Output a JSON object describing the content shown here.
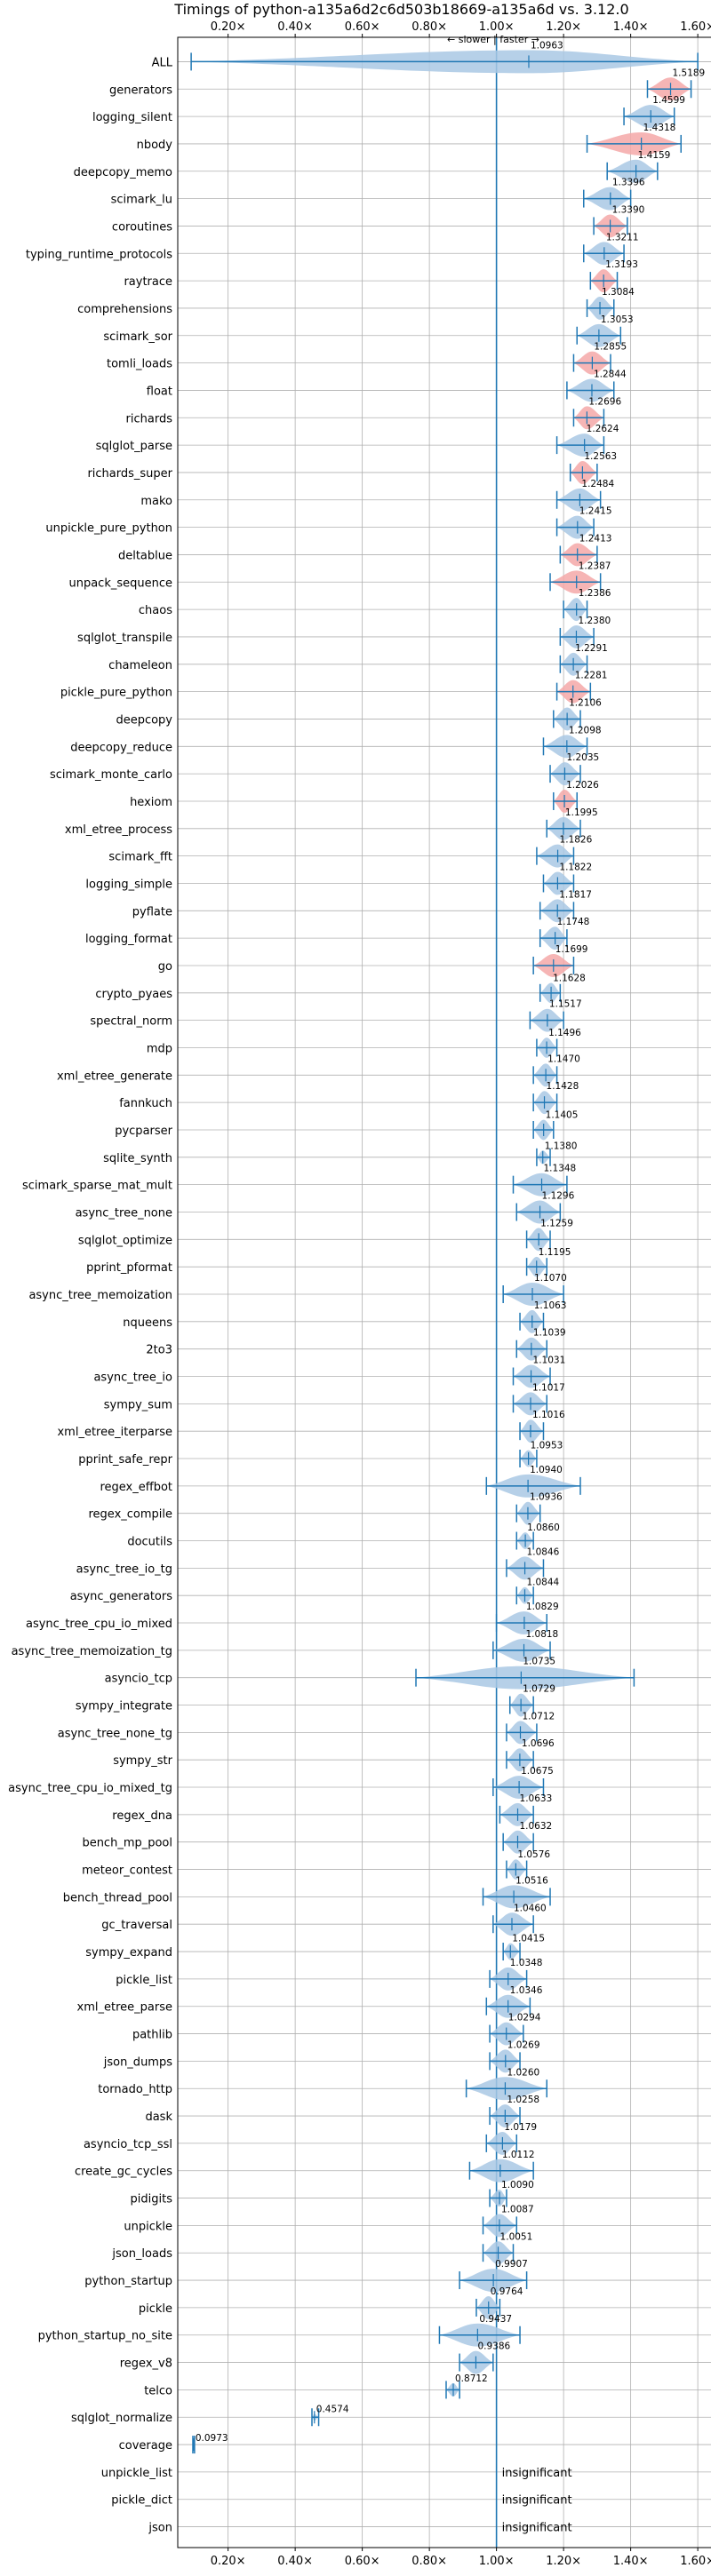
{
  "chart_data": {
    "type": "violin",
    "title": "Timings of python-a135a6d2c6d503b18669-a135a6d vs. 3.12.0",
    "direction_note": "← slower | faster →",
    "xlim": [
      0.05,
      1.65
    ],
    "xticks": [
      0.2,
      0.4,
      0.6,
      0.8,
      1.0,
      1.2,
      1.4,
      1.6
    ],
    "xtick_labels": [
      "0.20×",
      "0.40×",
      "0.60×",
      "0.80×",
      "1.00×",
      "1.20×",
      "1.40×",
      "1.60×"
    ],
    "grid": true,
    "reference_line": 1.0,
    "colors": {
      "faster": "#a9c8e4",
      "slower_highlight": "#f4a8a8",
      "line": "#1f77b4"
    },
    "rows": [
      {
        "name": "ALL",
        "value": 1.0963,
        "label": "1.0963",
        "min": 0.09,
        "max": 1.6,
        "hl": false
      },
      {
        "name": "generators",
        "value": 1.5189,
        "label": "1.5189",
        "min": 1.45,
        "max": 1.58,
        "hl": true
      },
      {
        "name": "logging_silent",
        "value": 1.4599,
        "label": "1.4599",
        "min": 1.38,
        "max": 1.53,
        "hl": false
      },
      {
        "name": "nbody",
        "value": 1.4318,
        "label": "1.4318",
        "min": 1.27,
        "max": 1.55,
        "hl": true
      },
      {
        "name": "deepcopy_memo",
        "value": 1.4159,
        "label": "1.4159",
        "min": 1.33,
        "max": 1.48,
        "hl": false
      },
      {
        "name": "scimark_lu",
        "value": 1.3396,
        "label": "1.3396",
        "min": 1.26,
        "max": 1.4,
        "hl": false
      },
      {
        "name": "coroutines",
        "value": 1.339,
        "label": "1.3390",
        "min": 1.29,
        "max": 1.39,
        "hl": true
      },
      {
        "name": "typing_runtime_protocols",
        "value": 1.3211,
        "label": "1.3211",
        "min": 1.26,
        "max": 1.38,
        "hl": false
      },
      {
        "name": "raytrace",
        "value": 1.3193,
        "label": "1.3193",
        "min": 1.28,
        "max": 1.36,
        "hl": true
      },
      {
        "name": "comprehensions",
        "value": 1.3084,
        "label": "1.3084",
        "min": 1.27,
        "max": 1.35,
        "hl": false
      },
      {
        "name": "scimark_sor",
        "value": 1.3053,
        "label": "1.3053",
        "min": 1.24,
        "max": 1.37,
        "hl": false
      },
      {
        "name": "tomli_loads",
        "value": 1.2855,
        "label": "1.2855",
        "min": 1.23,
        "max": 1.34,
        "hl": true
      },
      {
        "name": "float",
        "value": 1.2844,
        "label": "1.2844",
        "min": 1.21,
        "max": 1.35,
        "hl": false
      },
      {
        "name": "richards",
        "value": 1.2696,
        "label": "1.2696",
        "min": 1.23,
        "max": 1.32,
        "hl": true
      },
      {
        "name": "sqlglot_parse",
        "value": 1.2624,
        "label": "1.2624",
        "min": 1.18,
        "max": 1.32,
        "hl": false
      },
      {
        "name": "richards_super",
        "value": 1.2563,
        "label": "1.2563",
        "min": 1.22,
        "max": 1.3,
        "hl": true
      },
      {
        "name": "mako",
        "value": 1.2484,
        "label": "1.2484",
        "min": 1.18,
        "max": 1.31,
        "hl": false
      },
      {
        "name": "unpickle_pure_python",
        "value": 1.2415,
        "label": "1.2415",
        "min": 1.18,
        "max": 1.29,
        "hl": false
      },
      {
        "name": "deltablue",
        "value": 1.2413,
        "label": "1.2413",
        "min": 1.19,
        "max": 1.3,
        "hl": true
      },
      {
        "name": "unpack_sequence",
        "value": 1.2387,
        "label": "1.2387",
        "min": 1.16,
        "max": 1.31,
        "hl": true
      },
      {
        "name": "chaos",
        "value": 1.2386,
        "label": "1.2386",
        "min": 1.2,
        "max": 1.27,
        "hl": false
      },
      {
        "name": "sqlglot_transpile",
        "value": 1.238,
        "label": "1.2380",
        "min": 1.19,
        "max": 1.29,
        "hl": false
      },
      {
        "name": "chameleon",
        "value": 1.2291,
        "label": "1.2291",
        "min": 1.19,
        "max": 1.27,
        "hl": false
      },
      {
        "name": "pickle_pure_python",
        "value": 1.2281,
        "label": "1.2281",
        "min": 1.18,
        "max": 1.28,
        "hl": true
      },
      {
        "name": "deepcopy",
        "value": 1.2106,
        "label": "1.2106",
        "min": 1.17,
        "max": 1.25,
        "hl": false
      },
      {
        "name": "deepcopy_reduce",
        "value": 1.2098,
        "label": "1.2098",
        "min": 1.14,
        "max": 1.27,
        "hl": false
      },
      {
        "name": "scimark_monte_carlo",
        "value": 1.2035,
        "label": "1.2035",
        "min": 1.16,
        "max": 1.25,
        "hl": false
      },
      {
        "name": "hexiom",
        "value": 1.2026,
        "label": "1.2026",
        "min": 1.17,
        "max": 1.24,
        "hl": true
      },
      {
        "name": "xml_etree_process",
        "value": 1.1995,
        "label": "1.1995",
        "min": 1.15,
        "max": 1.25,
        "hl": false
      },
      {
        "name": "scimark_fft",
        "value": 1.1826,
        "label": "1.1826",
        "min": 1.12,
        "max": 1.23,
        "hl": false
      },
      {
        "name": "logging_simple",
        "value": 1.1822,
        "label": "1.1822",
        "min": 1.14,
        "max": 1.23,
        "hl": false
      },
      {
        "name": "pyflate",
        "value": 1.1817,
        "label": "1.1817",
        "min": 1.13,
        "max": 1.23,
        "hl": false
      },
      {
        "name": "logging_format",
        "value": 1.1748,
        "label": "1.1748",
        "min": 1.13,
        "max": 1.21,
        "hl": false
      },
      {
        "name": "go",
        "value": 1.1699,
        "label": "1.1699",
        "min": 1.11,
        "max": 1.23,
        "hl": true
      },
      {
        "name": "crypto_pyaes",
        "value": 1.1628,
        "label": "1.1628",
        "min": 1.13,
        "max": 1.19,
        "hl": false
      },
      {
        "name": "spectral_norm",
        "value": 1.1517,
        "label": "1.1517",
        "min": 1.1,
        "max": 1.2,
        "hl": false
      },
      {
        "name": "mdp",
        "value": 1.1496,
        "label": "1.1496",
        "min": 1.12,
        "max": 1.18,
        "hl": false
      },
      {
        "name": "xml_etree_generate",
        "value": 1.147,
        "label": "1.1470",
        "min": 1.11,
        "max": 1.18,
        "hl": false
      },
      {
        "name": "fannkuch",
        "value": 1.1428,
        "label": "1.1428",
        "min": 1.11,
        "max": 1.18,
        "hl": false
      },
      {
        "name": "pycparser",
        "value": 1.1405,
        "label": "1.1405",
        "min": 1.11,
        "max": 1.17,
        "hl": false
      },
      {
        "name": "sqlite_synth",
        "value": 1.138,
        "label": "1.1380",
        "min": 1.12,
        "max": 1.16,
        "hl": false
      },
      {
        "name": "scimark_sparse_mat_mult",
        "value": 1.1348,
        "label": "1.1348",
        "min": 1.05,
        "max": 1.21,
        "hl": false
      },
      {
        "name": "async_tree_none",
        "value": 1.1296,
        "label": "1.1296",
        "min": 1.06,
        "max": 1.19,
        "hl": false
      },
      {
        "name": "sqlglot_optimize",
        "value": 1.1259,
        "label": "1.1259",
        "min": 1.09,
        "max": 1.16,
        "hl": false
      },
      {
        "name": "pprint_pformat",
        "value": 1.1195,
        "label": "1.1195",
        "min": 1.09,
        "max": 1.15,
        "hl": false
      },
      {
        "name": "async_tree_memoization",
        "value": 1.107,
        "label": "1.1070",
        "min": 1.02,
        "max": 1.2,
        "hl": false
      },
      {
        "name": "nqueens",
        "value": 1.1063,
        "label": "1.1063",
        "min": 1.07,
        "max": 1.14,
        "hl": false
      },
      {
        "name": "2to3",
        "value": 1.1039,
        "label": "1.1039",
        "min": 1.06,
        "max": 1.15,
        "hl": false
      },
      {
        "name": "async_tree_io",
        "value": 1.1031,
        "label": "1.1031",
        "min": 1.05,
        "max": 1.16,
        "hl": false
      },
      {
        "name": "sympy_sum",
        "value": 1.1017,
        "label": "1.1017",
        "min": 1.05,
        "max": 1.15,
        "hl": false
      },
      {
        "name": "xml_etree_iterparse",
        "value": 1.1016,
        "label": "1.1016",
        "min": 1.07,
        "max": 1.14,
        "hl": false
      },
      {
        "name": "pprint_safe_repr",
        "value": 1.0953,
        "label": "1.0953",
        "min": 1.07,
        "max": 1.12,
        "hl": false
      },
      {
        "name": "regex_effbot",
        "value": 1.094,
        "label": "1.0940",
        "min": 0.97,
        "max": 1.25,
        "hl": false
      },
      {
        "name": "regex_compile",
        "value": 1.0936,
        "label": "1.0936",
        "min": 1.06,
        "max": 1.13,
        "hl": false
      },
      {
        "name": "docutils",
        "value": 1.086,
        "label": "1.0860",
        "min": 1.06,
        "max": 1.11,
        "hl": false
      },
      {
        "name": "async_tree_io_tg",
        "value": 1.0846,
        "label": "1.0846",
        "min": 1.03,
        "max": 1.14,
        "hl": false
      },
      {
        "name": "async_generators",
        "value": 1.0844,
        "label": "1.0844",
        "min": 1.06,
        "max": 1.11,
        "hl": false
      },
      {
        "name": "async_tree_cpu_io_mixed",
        "value": 1.0829,
        "label": "1.0829",
        "min": 1.0,
        "max": 1.15,
        "hl": false
      },
      {
        "name": "async_tree_memoization_tg",
        "value": 1.0818,
        "label": "1.0818",
        "min": 0.99,
        "max": 1.16,
        "hl": false
      },
      {
        "name": "asyncio_tcp",
        "value": 1.0735,
        "label": "1.0735",
        "min": 0.76,
        "max": 1.41,
        "hl": false
      },
      {
        "name": "sympy_integrate",
        "value": 1.0729,
        "label": "1.0729",
        "min": 1.04,
        "max": 1.11,
        "hl": false
      },
      {
        "name": "async_tree_none_tg",
        "value": 1.0712,
        "label": "1.0712",
        "min": 1.03,
        "max": 1.12,
        "hl": false
      },
      {
        "name": "sympy_str",
        "value": 1.0696,
        "label": "1.0696",
        "min": 1.03,
        "max": 1.11,
        "hl": false
      },
      {
        "name": "async_tree_cpu_io_mixed_tg",
        "value": 1.0675,
        "label": "1.0675",
        "min": 0.99,
        "max": 1.14,
        "hl": false
      },
      {
        "name": "regex_dna",
        "value": 1.0633,
        "label": "1.0633",
        "min": 1.01,
        "max": 1.11,
        "hl": false
      },
      {
        "name": "bench_mp_pool",
        "value": 1.0632,
        "label": "1.0632",
        "min": 1.02,
        "max": 1.11,
        "hl": false
      },
      {
        "name": "meteor_contest",
        "value": 1.0576,
        "label": "1.0576",
        "min": 1.03,
        "max": 1.09,
        "hl": false
      },
      {
        "name": "bench_thread_pool",
        "value": 1.0516,
        "label": "1.0516",
        "min": 0.96,
        "max": 1.16,
        "hl": false
      },
      {
        "name": "gc_traversal",
        "value": 1.046,
        "label": "1.0460",
        "min": 0.99,
        "max": 1.11,
        "hl": false
      },
      {
        "name": "sympy_expand",
        "value": 1.0415,
        "label": "1.0415",
        "min": 1.02,
        "max": 1.07,
        "hl": false
      },
      {
        "name": "pickle_list",
        "value": 1.0348,
        "label": "1.0348",
        "min": 0.98,
        "max": 1.09,
        "hl": false
      },
      {
        "name": "xml_etree_parse",
        "value": 1.0346,
        "label": "1.0346",
        "min": 0.97,
        "max": 1.1,
        "hl": false
      },
      {
        "name": "pathlib",
        "value": 1.0294,
        "label": "1.0294",
        "min": 0.98,
        "max": 1.08,
        "hl": false
      },
      {
        "name": "json_dumps",
        "value": 1.0269,
        "label": "1.0269",
        "min": 0.98,
        "max": 1.07,
        "hl": false
      },
      {
        "name": "tornado_http",
        "value": 1.026,
        "label": "1.0260",
        "min": 0.91,
        "max": 1.15,
        "hl": false
      },
      {
        "name": "dask",
        "value": 1.0258,
        "label": "1.0258",
        "min": 0.98,
        "max": 1.07,
        "hl": false
      },
      {
        "name": "asyncio_tcp_ssl",
        "value": 1.0179,
        "label": "1.0179",
        "min": 0.97,
        "max": 1.06,
        "hl": false
      },
      {
        "name": "create_gc_cycles",
        "value": 1.0112,
        "label": "1.0112",
        "min": 0.92,
        "max": 1.11,
        "hl": false
      },
      {
        "name": "pidigits",
        "value": 1.009,
        "label": "1.0090",
        "min": 0.98,
        "max": 1.03,
        "hl": false
      },
      {
        "name": "unpickle",
        "value": 1.0087,
        "label": "1.0087",
        "min": 0.96,
        "max": 1.06,
        "hl": false
      },
      {
        "name": "json_loads",
        "value": 1.0051,
        "label": "1.0051",
        "min": 0.96,
        "max": 1.05,
        "hl": false
      },
      {
        "name": "python_startup",
        "value": 0.9907,
        "label": "0.9907",
        "min": 0.89,
        "max": 1.09,
        "hl": false
      },
      {
        "name": "pickle",
        "value": 0.9764,
        "label": "0.9764",
        "min": 0.94,
        "max": 1.01,
        "hl": false
      },
      {
        "name": "python_startup_no_site",
        "value": 0.9437,
        "label": "0.9437",
        "min": 0.83,
        "max": 1.07,
        "hl": false
      },
      {
        "name": "regex_v8",
        "value": 0.9386,
        "label": "0.9386",
        "min": 0.89,
        "max": 0.99,
        "hl": false
      },
      {
        "name": "telco",
        "value": 0.8712,
        "label": "0.8712",
        "min": 0.85,
        "max": 0.89,
        "hl": false
      },
      {
        "name": "sqlglot_normalize",
        "value": 0.4574,
        "label": "0.4574",
        "min": 0.45,
        "max": 0.47,
        "hl": false
      },
      {
        "name": "coverage",
        "value": 0.0973,
        "label": "0.0973",
        "min": 0.095,
        "max": 0.1,
        "hl": false
      },
      {
        "name": "unpickle_list",
        "value": null,
        "label": "insignificant",
        "hl": false
      },
      {
        "name": "pickle_dict",
        "value": null,
        "label": "insignificant",
        "hl": false
      },
      {
        "name": "json",
        "value": null,
        "label": "insignificant",
        "hl": false
      }
    ]
  }
}
